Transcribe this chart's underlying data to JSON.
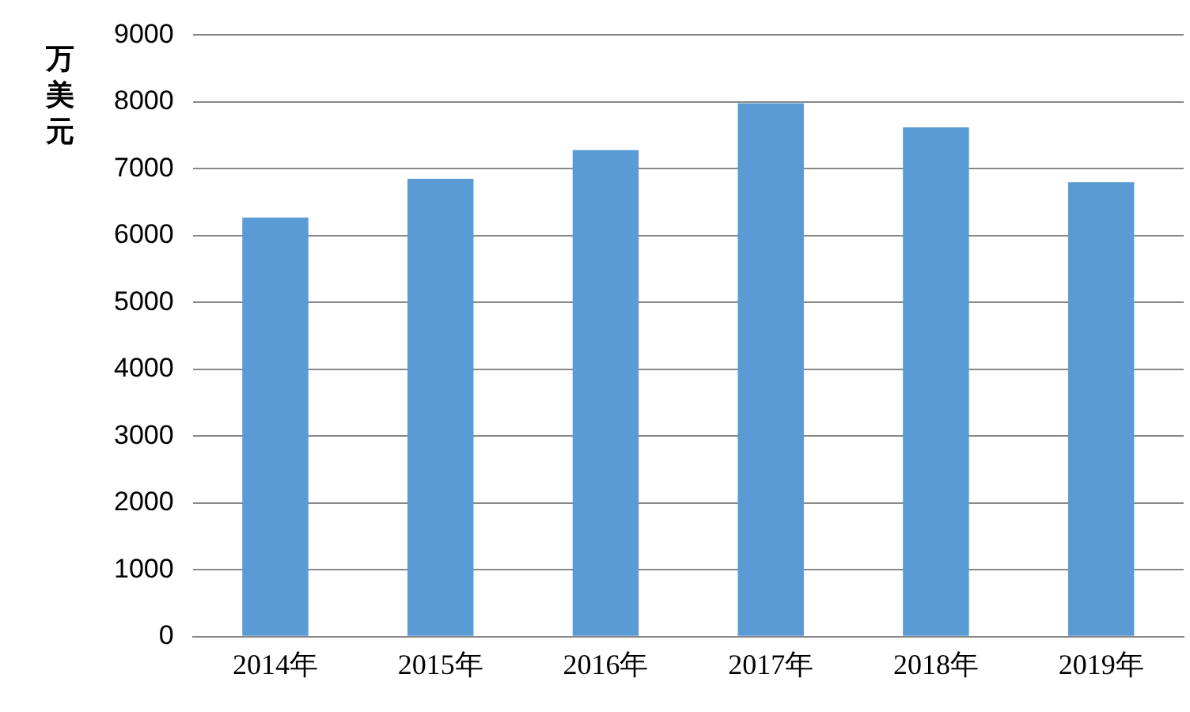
{
  "chart_data": {
    "type": "bar",
    "ylabel": "万美元",
    "categories": [
      "2014年",
      "2015年",
      "2016年",
      "2017年",
      "2018年",
      "2019年"
    ],
    "values": [
      6270,
      6850,
      7280,
      7980,
      7620,
      6800
    ],
    "color": "#5b9bd5",
    "ylim": [
      0,
      9000
    ],
    "yticks": [
      0,
      1000,
      2000,
      3000,
      4000,
      5000,
      6000,
      7000,
      8000,
      9000
    ],
    "grid": "y",
    "legend": false
  }
}
